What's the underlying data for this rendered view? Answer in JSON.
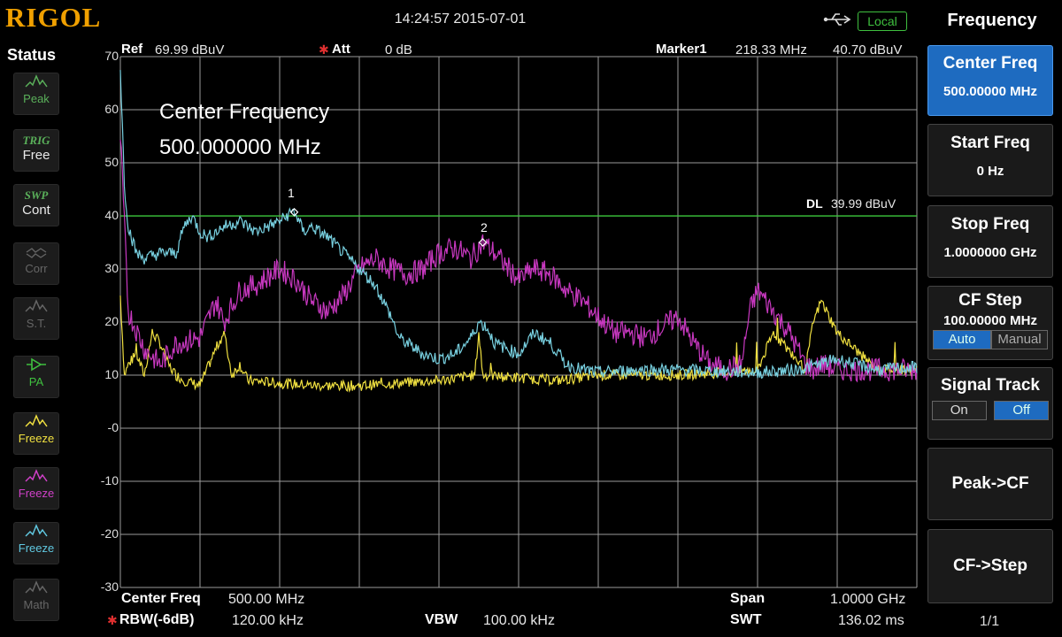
{
  "header": {
    "logo": "RIGOL",
    "datetime": "14:24:57 2015-07-01",
    "usb_icon": "usb-icon",
    "remote_badge": "Local"
  },
  "status_panel": {
    "title": "Status",
    "buttons": [
      {
        "icon": "peak-icon",
        "label": "Peak",
        "color": "#5ab05a"
      },
      {
        "line1": "TRIG",
        "label": "Free",
        "color": "#5ab05a"
      },
      {
        "line1": "SWP",
        "label": "Cont",
        "color": "#5ab05a"
      },
      {
        "icon": "corr-icon",
        "label": "Corr",
        "color": "#666666"
      },
      {
        "icon": "source-tracking-icon",
        "label": "S.T.",
        "color": "#666666"
      },
      {
        "icon": "preamp-icon",
        "label": "PA",
        "color": "#3fc03f"
      },
      {
        "icon": "trace-yellow-icon",
        "label": "Freeze",
        "color": "#f0e040"
      },
      {
        "icon": "trace-magenta-icon",
        "label": "Freeze",
        "color": "#d040c8"
      },
      {
        "icon": "trace-cyan-icon",
        "label": "Freeze",
        "color": "#60c8e0"
      },
      {
        "icon": "math-icon",
        "label": "Math",
        "color": "#666666"
      }
    ]
  },
  "plot_header": {
    "ref_label": "Ref",
    "ref_value": "69.99 dBuV",
    "att_label": "Att",
    "att_value": "0 dB",
    "marker_label": "Marker1",
    "marker_freq": "218.33 MHz",
    "marker_level": "40.70 dBuV"
  },
  "annotation": {
    "line1": "Center Frequency",
    "line2": "500.000000 MHz"
  },
  "display_line": {
    "label": "DL",
    "value": "39.99 dBuV"
  },
  "markers": [
    "1",
    "2"
  ],
  "footer": {
    "center_label": "Center Freq",
    "center_value": "500.00 MHz",
    "span_label": "Span",
    "span_value": "1.0000 GHz",
    "rbw_label": "RBW(-6dB)",
    "rbw_value": "120.00 kHz",
    "vbw_label": "VBW",
    "vbw_value": "100.00 kHz",
    "swt_label": "SWT",
    "swt_value": "136.02 ms"
  },
  "menu": {
    "title": "Frequency",
    "center_freq": {
      "label": "Center Freq",
      "value": "500.00000 MHz"
    },
    "start_freq": {
      "label": "Start Freq",
      "value": "0 Hz"
    },
    "stop_freq": {
      "label": "Stop Freq",
      "value": "1.0000000 GHz"
    },
    "cf_step": {
      "label": "CF Step",
      "value": "100.00000 MHz",
      "auto": "Auto",
      "manual": "Manual"
    },
    "signal_track": {
      "label": "Signal Track",
      "on": "On",
      "off": "Off"
    },
    "peak_cf": "Peak->CF",
    "cf_step_btn": "CF->Step",
    "page": "1/1"
  },
  "colors": {
    "grid": "#9a9a9a",
    "display_line": "#3cc83c",
    "trace_cyan": "#78d0e0",
    "trace_magenta": "#c838c0",
    "trace_yellow": "#f0e040",
    "menu_selected": "#1e6bc0",
    "logo": "#f0a000"
  },
  "chart_data": {
    "type": "line",
    "y_ticks": [
      "70",
      "60",
      "50",
      "40",
      "30",
      "20",
      "10",
      "-0",
      "-10",
      "-20",
      "-30"
    ],
    "ylim": [
      -30,
      70
    ],
    "xlim": [
      0,
      1000
    ],
    "x_unit": "MHz",
    "y_unit": "dBuV",
    "display_line_level": 39.99,
    "marker_points": [
      {
        "label": "1",
        "x": 218.33,
        "y": 40.7
      },
      {
        "label": "2",
        "x": 455,
        "y": 35
      }
    ],
    "series": [
      {
        "color": "#78d0e0",
        "x": [
          0,
          5,
          10,
          20,
          30,
          50,
          70,
          80,
          90,
          100,
          110,
          130,
          150,
          170,
          200,
          218,
          230,
          240,
          260,
          280,
          300,
          320,
          340,
          350,
          360,
          380,
          400,
          420,
          440,
          450,
          460,
          470,
          500,
          520,
          540,
          560,
          580,
          600,
          650,
          700,
          800,
          850,
          900,
          950,
          1000
        ],
        "y": [
          68,
          46,
          38,
          33,
          32,
          33,
          33,
          38,
          40,
          37,
          36,
          38,
          39,
          37,
          39,
          41,
          37,
          38,
          36,
          33,
          30,
          27,
          21,
          17,
          16,
          14,
          13,
          14,
          17,
          20,
          19,
          16,
          14,
          18,
          16,
          12,
          11,
          10.5,
          11,
          11,
          10.5,
          11,
          13,
          11,
          11.5
        ]
      },
      {
        "color": "#c838c0",
        "x": [
          0,
          10,
          30,
          50,
          70,
          100,
          120,
          130,
          150,
          170,
          200,
          220,
          240,
          260,
          280,
          300,
          320,
          340,
          360,
          380,
          400,
          420,
          440,
          455,
          470,
          500,
          520,
          540,
          560,
          580,
          600,
          620,
          640,
          660,
          680,
          700,
          720,
          740,
          760,
          780,
          790,
          800,
          820,
          840,
          860,
          870,
          880,
          900,
          920,
          940,
          1000
        ],
        "y": [
          55,
          22,
          15,
          12,
          16,
          17,
          24,
          20,
          26,
          27,
          30,
          28,
          24,
          22,
          25,
          30,
          32,
          30,
          29,
          30,
          33,
          34,
          32,
          35,
          33,
          28,
          30,
          29,
          26,
          24,
          21,
          18,
          18,
          17,
          19,
          21,
          16,
          12,
          11,
          12,
          22,
          26,
          22,
          18,
          12,
          11,
          12,
          11,
          11,
          11,
          11
        ]
      },
      {
        "color": "#f0e040",
        "x": [
          0,
          5,
          10,
          20,
          30,
          40,
          50,
          60,
          70,
          80,
          100,
          120,
          130,
          140,
          150,
          160,
          200,
          250,
          300,
          350,
          400,
          445,
          450,
          455,
          500,
          550,
          600,
          700,
          760,
          800,
          820,
          860,
          870,
          880,
          900,
          950,
          1000
        ],
        "y": [
          25,
          10,
          12,
          14,
          10,
          18,
          16,
          12,
          10,
          9,
          8,
          15,
          18,
          10,
          12,
          9,
          8.5,
          8,
          8,
          8.5,
          9,
          10,
          18,
          10,
          9.5,
          9,
          10,
          10,
          10.5,
          11,
          18,
          11,
          20,
          24,
          18,
          11,
          11
        ]
      }
    ]
  }
}
